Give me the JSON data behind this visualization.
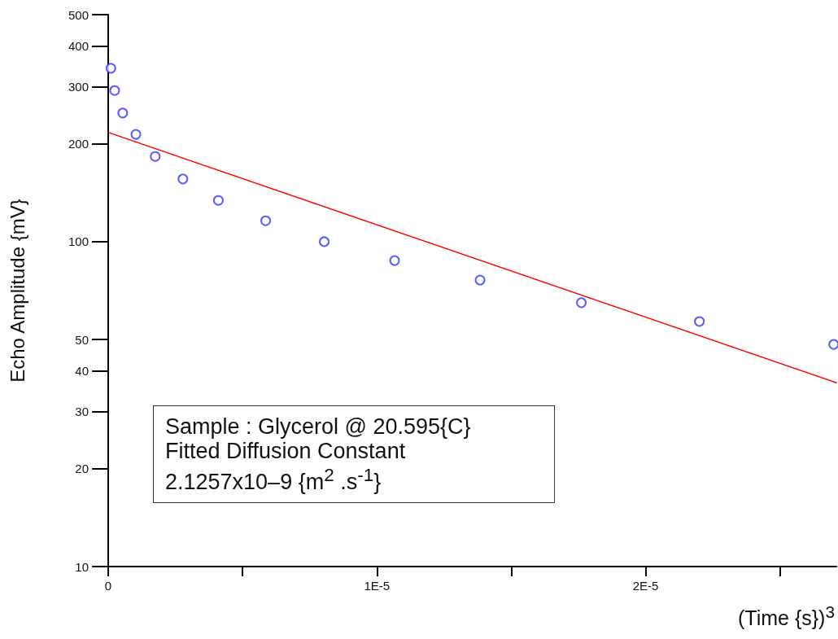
{
  "chart_data": {
    "type": "scatter",
    "xlabel": "(Time {s})$^{3}$",
    "ylabel": "Echo Amplitude {mV}",
    "annotations": [
      "Sample : Glycerol @ 20.595{C}",
      "Fitted Diffusion Constant",
      "2.1257x10–9 {m$^{2}$ .s$^{-1}$}"
    ],
    "series": [
      {
        "type": "scatter",
        "color": "#3333ff",
        "marker": "circle",
        "x": [
          1e-07,
          2.4e-07,
          5.4e-07,
          1.03e-06,
          1.75e-06,
          2.78e-06,
          4.1e-06,
          5.86e-06,
          8.04e-06,
          1.066e-05,
          1.384e-05,
          1.761e-05,
          2.2e-05,
          2.7e-05
        ],
        "values": [
          342,
          292,
          249,
          214,
          183,
          156,
          134,
          116,
          100,
          87.5,
          76.2,
          64.9,
          56.8,
          48.3
        ]
      },
      {
        "type": "line",
        "color": "#ff0000",
        "marker": "none",
        "x": [
          0,
          2.71e-05
        ],
        "values": [
          217,
          36.8
        ]
      }
    ],
    "log": "y",
    "grid": false,
    "line_style": "solid",
    "xlim": [
      0,
      2.71e-05
    ],
    "xticks": [
      0,
      {
        "value": 5e-06,
        "label": null
      },
      {
        "value": 1e-05,
        "label": "1E-5"
      },
      {
        "value": 1.5e-05,
        "label": null
      },
      {
        "value": 2e-05,
        "label": "2E-5"
      },
      {
        "value": 2.5e-05,
        "label": null
      }
    ],
    "ylim": [
      10,
      500
    ],
    "yticks": [
      10,
      20,
      30,
      40,
      50,
      100,
      200,
      300,
      400,
      500
    ]
  }
}
